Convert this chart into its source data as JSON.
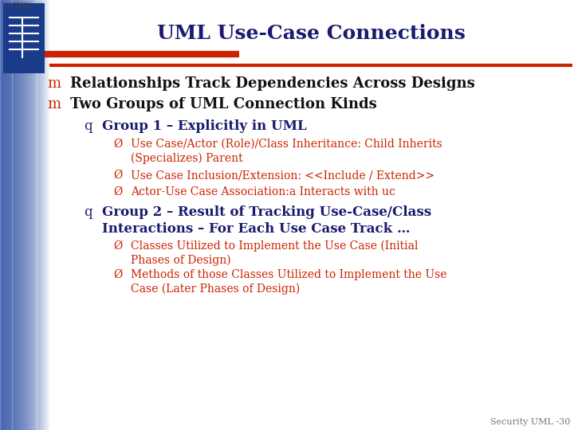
{
  "title": "UML Use-Case Connections",
  "title_color": "#1a1a6e",
  "title_fontsize": 18,
  "background_color": "#ffffff",
  "header_line_color": "#cc2200",
  "footer_text": "Security UML -30",
  "footer_color": "#777777",
  "footer_fontsize": 8,
  "level1_bullet": "m",
  "level1_color": "#cc2200",
  "level1_text_color": "#111111",
  "level1_fontsize": 13,
  "level2_bullet": "q",
  "level2_color": "#1a1a6e",
  "level2_text_color": "#1a1a6e",
  "level2_fontsize": 12,
  "level3_bullet": "Ø",
  "level3_color": "#cc2200",
  "level3_text_color": "#cc2200",
  "level3_fontsize": 10,
  "gradient_color": "#3a5aaa",
  "shield_color": "#1a3a8a",
  "items": [
    {
      "level": 1,
      "text": "Relationships Track Dependencies Across Designs",
      "bold": true
    },
    {
      "level": 1,
      "text": "Two Groups of UML Connection Kinds",
      "bold": true
    },
    {
      "level": 2,
      "text": "Group 1 – Explicitly in UML",
      "bold": true
    },
    {
      "level": 3,
      "text": "Use Case/Actor (Role)/Class Inheritance: Child Inherits\n(Specializes) Parent",
      "bold": false
    },
    {
      "level": 3,
      "text": "Use Case Inclusion/Extension: <<Include / Extend>>",
      "bold": false
    },
    {
      "level": 3,
      "text": "Actor-Use Case Association:a Interacts with uc",
      "bold": false,
      "italic_parts": true
    },
    {
      "level": 2,
      "text": "Group 2 – Result of Tracking Use-Case/Class\nInteractions – For Each Use Case Track …",
      "bold": true
    },
    {
      "level": 3,
      "text": "Classes Utilized to Implement the Use Case (Initial\nPhases of Design)",
      "bold": false
    },
    {
      "level": 3,
      "text": "Methods of those Classes Utilized to Implement the Use\nCase (Later Phases of Design)",
      "bold": false
    }
  ]
}
